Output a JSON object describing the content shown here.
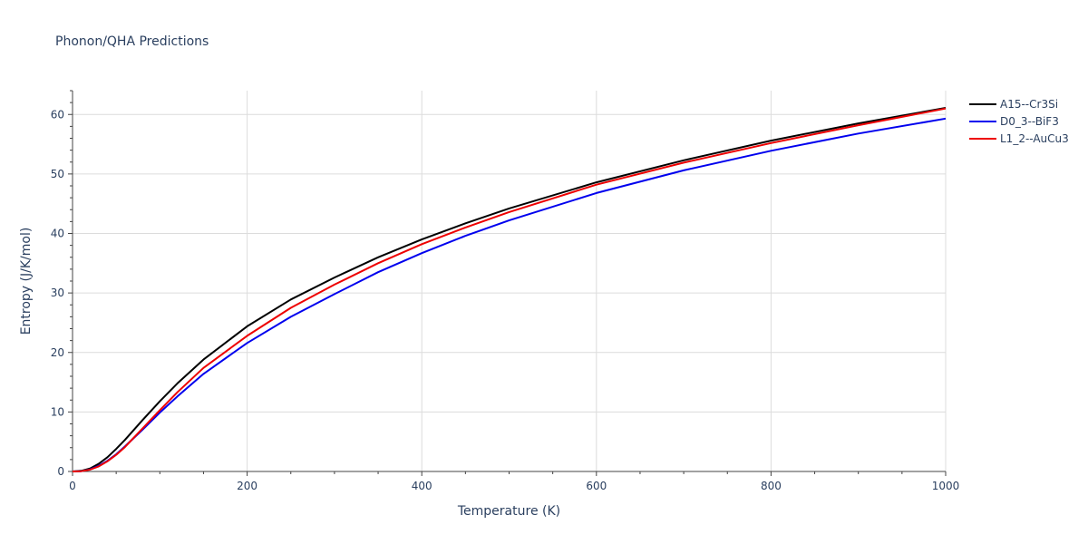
{
  "chart_data": {
    "type": "line",
    "title": "Phonon/QHA Predictions",
    "xlabel": "Temperature (K)",
    "ylabel": "Entropy (J/K/mol)",
    "xlim": [
      0,
      1000
    ],
    "ylim": [
      0,
      64
    ],
    "xticks": [
      0,
      200,
      400,
      600,
      800,
      1000
    ],
    "yticks": [
      0,
      10,
      20,
      30,
      40,
      50,
      60
    ],
    "grid": true,
    "legend_position": "top-right",
    "x": [
      0,
      10,
      20,
      30,
      40,
      50,
      60,
      80,
      100,
      120,
      150,
      200,
      250,
      300,
      350,
      400,
      450,
      500,
      600,
      700,
      800,
      900,
      1000
    ],
    "series": [
      {
        "name": "A15--Cr3Si",
        "color": "#000000",
        "values": [
          0,
          0.1,
          0.5,
          1.3,
          2.4,
          3.8,
          5.3,
          8.6,
          11.8,
          14.8,
          18.8,
          24.4,
          28.9,
          32.6,
          36.0,
          39.0,
          41.7,
          44.2,
          48.6,
          52.3,
          55.6,
          58.5,
          61.1
        ]
      },
      {
        "name": "D0_3--BiF3",
        "color": "#0000ee",
        "values": [
          0,
          0.05,
          0.35,
          0.95,
          1.8,
          2.9,
          4.2,
          7.0,
          9.9,
          12.6,
          16.4,
          21.6,
          26.0,
          29.8,
          33.5,
          36.7,
          39.6,
          42.2,
          46.8,
          50.6,
          53.9,
          56.8,
          59.3
        ]
      },
      {
        "name": "L1_2--AuCu3",
        "color": "#ee0000",
        "values": [
          0,
          0.05,
          0.3,
          0.85,
          1.7,
          2.8,
          4.1,
          7.2,
          10.3,
          13.3,
          17.4,
          22.8,
          27.5,
          31.4,
          35.0,
          38.2,
          41.0,
          43.6,
          48.2,
          51.9,
          55.2,
          58.2,
          61.0
        ]
      }
    ]
  }
}
